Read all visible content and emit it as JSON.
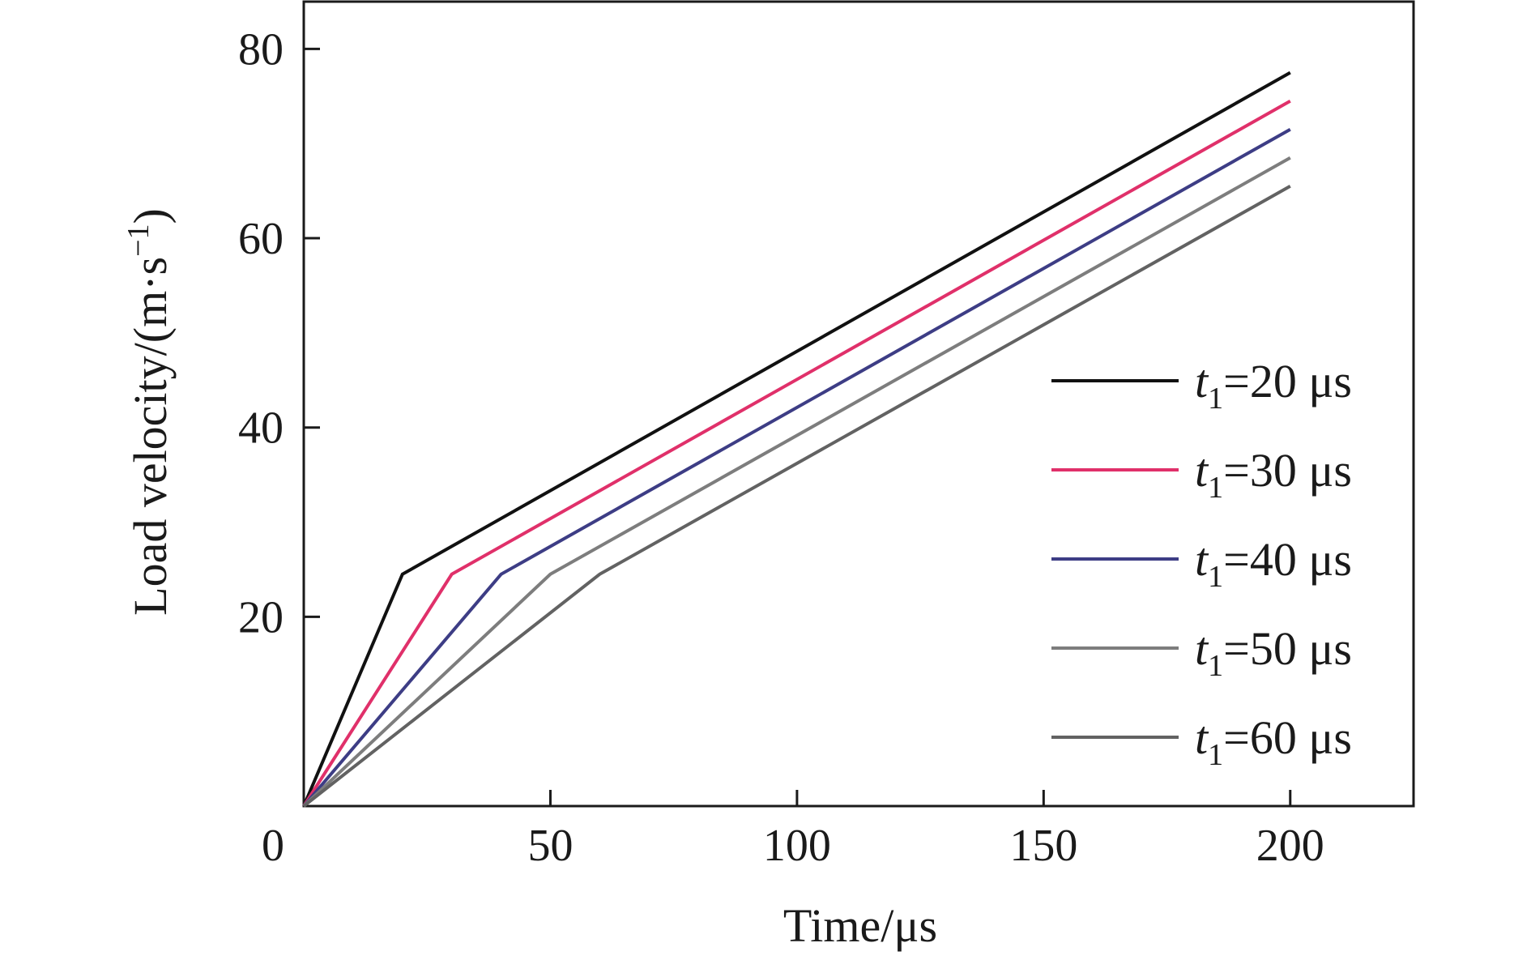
{
  "chart_data": {
    "type": "line",
    "xlabel": "Time/μs",
    "ylabel": "Load velocity/(m·s",
    "ylabel_superscript": "−1",
    "ylabel_close": ")",
    "xlim": [
      0,
      225
    ],
    "ylim": [
      0,
      85
    ],
    "x_ticks": [
      0,
      50,
      100,
      150,
      200
    ],
    "x_tick_labels": [
      "0",
      "50",
      "100",
      "150",
      "200"
    ],
    "y_ticks": [
      20,
      40,
      60,
      80
    ],
    "y_tick_labels": [
      "20",
      "40",
      "60",
      "80"
    ],
    "grid": false,
    "legend_position": "right",
    "series": [
      {
        "name": "t1=20 μs",
        "legend_var": "t",
        "legend_sub": "1",
        "legend_rest": "=20 μs",
        "color": "#111111",
        "x": [
          0,
          20,
          200
        ],
        "y": [
          0,
          24.5,
          77.5
        ]
      },
      {
        "name": "t1=30 μs",
        "legend_var": "t",
        "legend_sub": "1",
        "legend_rest": "=30 μs",
        "color": "#e0306a",
        "x": [
          0,
          30,
          200
        ],
        "y": [
          0,
          24.5,
          74.5
        ]
      },
      {
        "name": "t1=40 μs",
        "legend_var": "t",
        "legend_sub": "1",
        "legend_rest": "=40 μs",
        "color": "#3d3d85",
        "x": [
          0,
          40,
          200
        ],
        "y": [
          0,
          24.5,
          71.5
        ]
      },
      {
        "name": "t1=50 μs",
        "legend_var": "t",
        "legend_sub": "1",
        "legend_rest": "=50 μs",
        "color": "#7d7d7d",
        "x": [
          0,
          50,
          200
        ],
        "y": [
          0,
          24.5,
          68.5
        ]
      },
      {
        "name": "t1=60 μs",
        "legend_var": "t",
        "legend_sub": "1",
        "legend_rest": "=60 μs",
        "color": "#626262",
        "x": [
          0,
          60,
          200
        ],
        "y": [
          0,
          24.5,
          65.5
        ]
      }
    ]
  }
}
